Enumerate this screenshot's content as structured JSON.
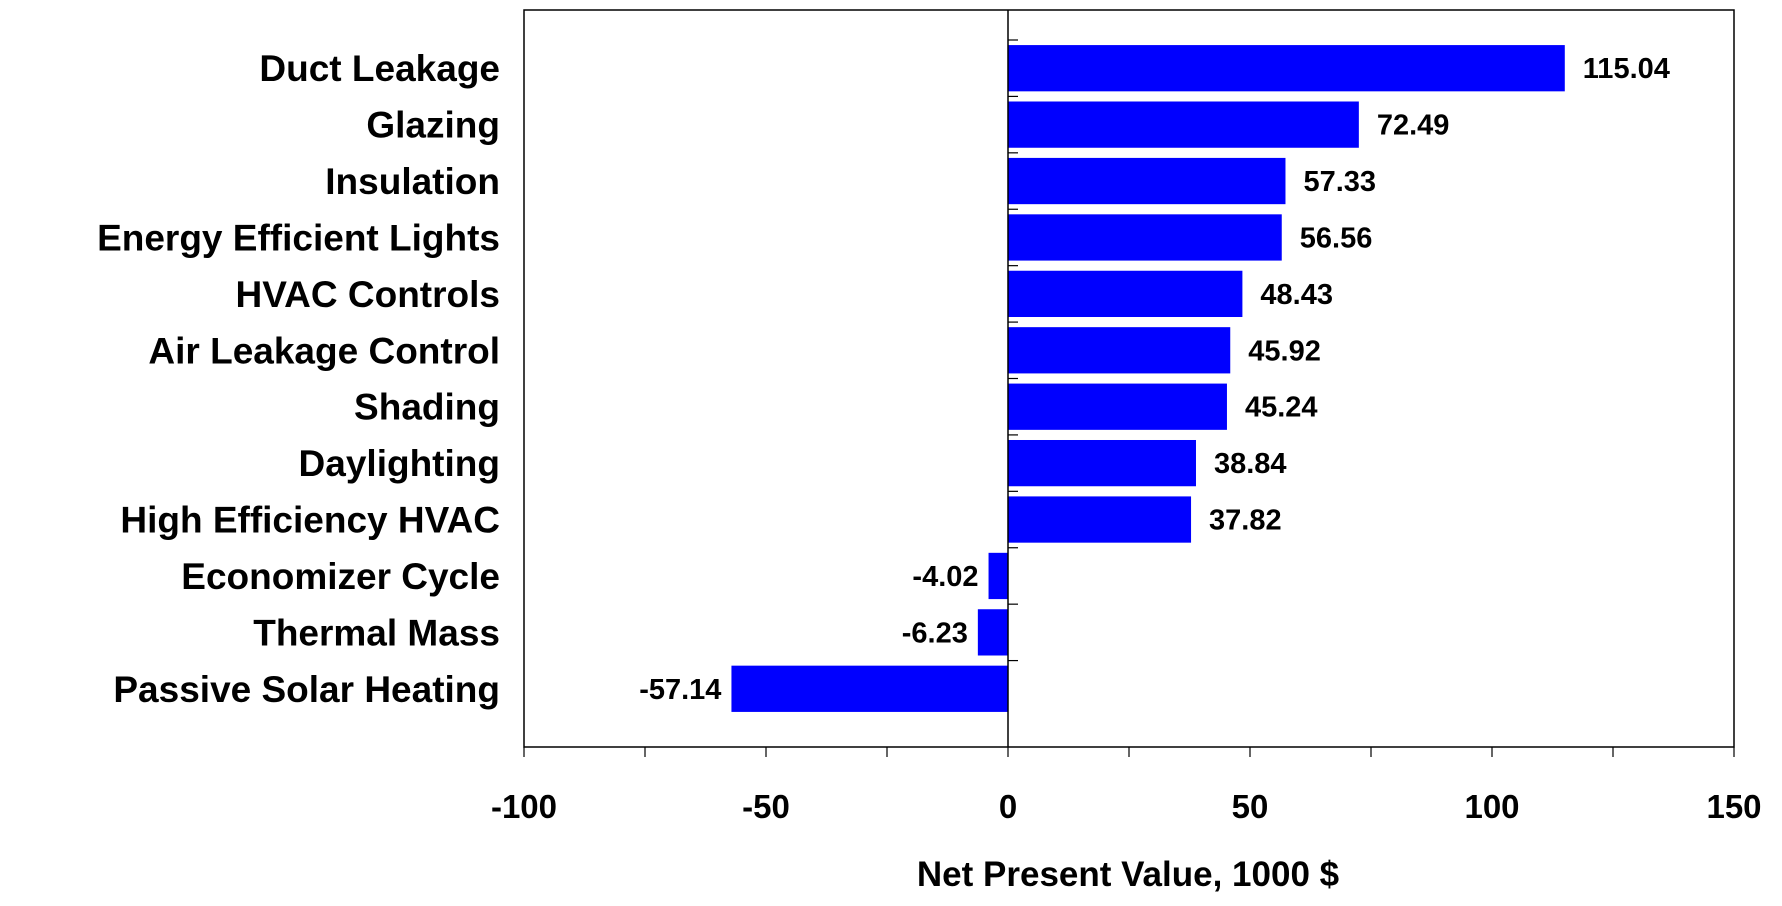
{
  "chart_data": {
    "type": "bar",
    "orientation": "horizontal",
    "title": "",
    "xlabel": "Net Present Value,  1000 $",
    "ylabel": "",
    "xlim": [
      -100,
      150
    ],
    "x_ticks": [
      -100,
      -50,
      0,
      50,
      100,
      150
    ],
    "x_tick_labels": [
      "-100",
      "-50",
      "0",
      "50",
      "100",
      "150"
    ],
    "grid": false,
    "legend": "none",
    "bar_color": "#0000FF",
    "categories": [
      "Duct Leakage",
      "Glazing",
      "Insulation",
      "Energy Efficient Lights",
      "HVAC Controls",
      "Air Leakage Control",
      "Shading",
      "Daylighting",
      "High Efficiency HVAC",
      "Economizer Cycle",
      "Thermal Mass",
      "Passive Solar Heating"
    ],
    "values": [
      115.04,
      72.49,
      57.33,
      56.56,
      48.43,
      45.92,
      45.24,
      38.84,
      37.82,
      -4.02,
      -6.23,
      -57.14
    ],
    "value_labels": [
      "115.04",
      "72.49",
      "57.33",
      "56.56",
      "48.43",
      "45.92",
      "45.24",
      "38.84",
      "37.82",
      "-4.02",
      "-6.23",
      "-57.14"
    ]
  }
}
